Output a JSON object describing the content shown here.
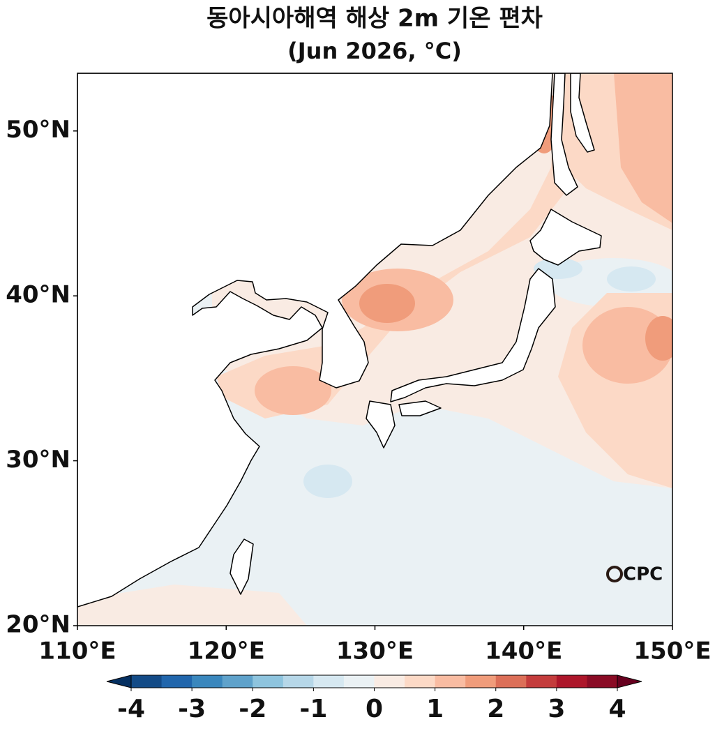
{
  "title": "동아시아해역 해상 2m 기온 편차",
  "subtitle": "(Jun 2026, °C)",
  "map": {
    "xlim": [
      110,
      150
    ],
    "ylim": [
      20,
      53.5
    ],
    "xticks": [
      {
        "value": 110,
        "label": "110°E"
      },
      {
        "value": 120,
        "label": "120°E"
      },
      {
        "value": 130,
        "label": "130°E"
      },
      {
        "value": 140,
        "label": "140°E"
      },
      {
        "value": 150,
        "label": "150°E"
      }
    ],
    "yticks": [
      {
        "value": 20,
        "label": "20°N"
      },
      {
        "value": 30,
        "label": "30°N"
      },
      {
        "value": 40,
        "label": "40°N"
      },
      {
        "value": 50,
        "label": "50°N"
      }
    ]
  },
  "colorbar": {
    "lim": [
      -4,
      4
    ],
    "ticks": [
      -4,
      -3,
      -2,
      -1,
      0,
      1,
      2,
      3,
      4
    ],
    "extend": "both",
    "colors": [
      "#053061",
      "#134b87",
      "#2166ac",
      "#3a87bd",
      "#5fa2cb",
      "#8ec4de",
      "#b6d7e8",
      "#d6e8f1",
      "#eaf1f4",
      "#f9ebe3",
      "#fcd9c6",
      "#f9bca2",
      "#f09c7b",
      "#dc6f58",
      "#c43c3c",
      "#ad162a",
      "#8a0b25",
      "#67001f"
    ]
  },
  "logo": "CPC"
}
